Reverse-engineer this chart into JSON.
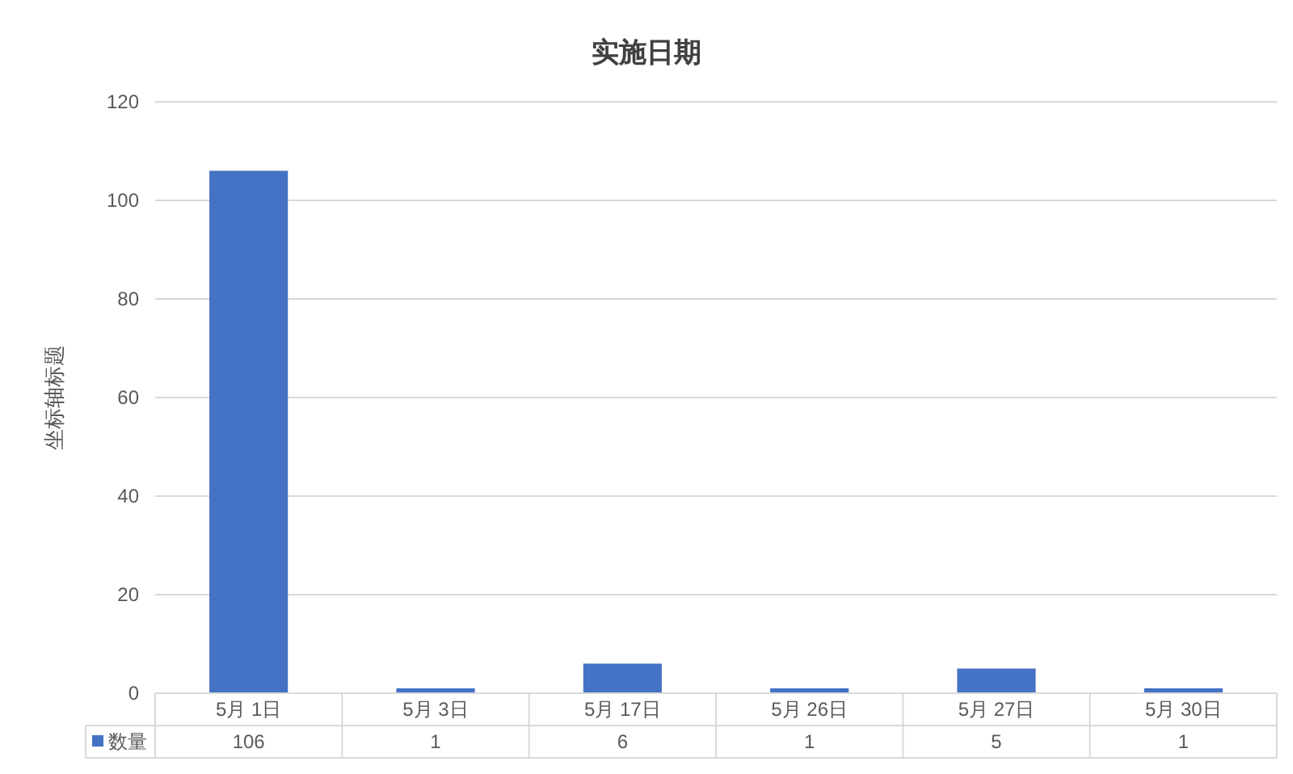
{
  "chart_data": {
    "type": "bar",
    "title": "实施日期",
    "ylabel": "坐标轴标题",
    "categories": [
      "5月 1日",
      "5月 3日",
      "5月 17日",
      "5月 26日",
      "5月 27日",
      "5月 30日"
    ],
    "series": [
      {
        "name": "数量",
        "color": "#4472c4",
        "values": [
          106,
          1,
          6,
          1,
          5,
          1
        ]
      }
    ],
    "ylim": [
      0,
      120
    ],
    "yticks": [
      0,
      20,
      40,
      60,
      80,
      100,
      120
    ],
    "grid": "y",
    "data_labels": true
  }
}
